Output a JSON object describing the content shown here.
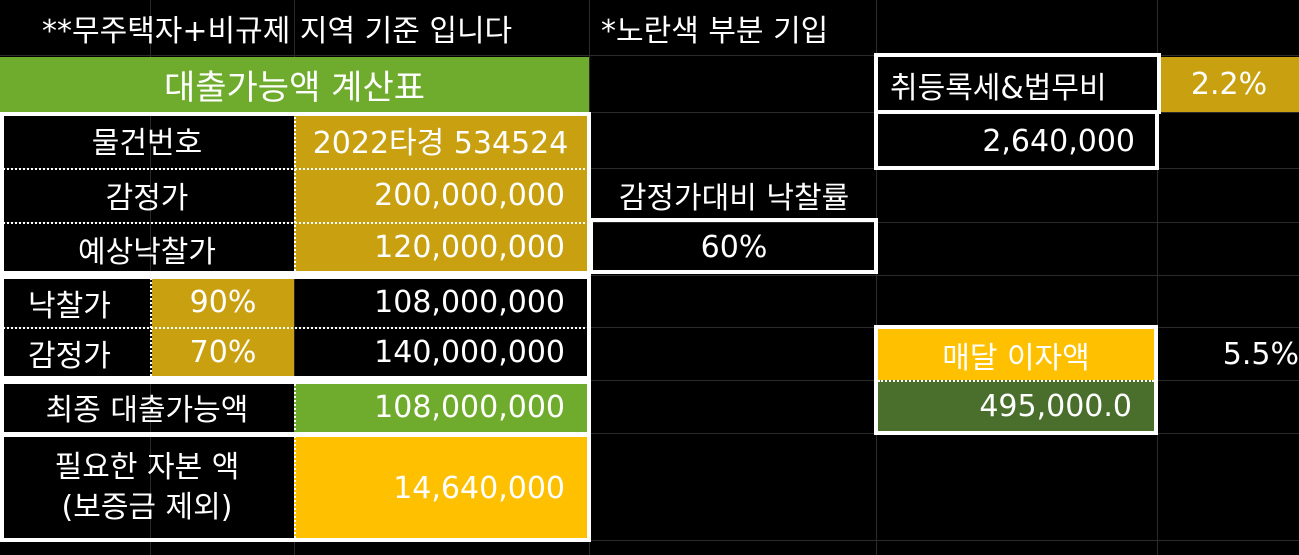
{
  "note_left": "**무주택자+비규제 지역 기준 입니다",
  "note_right": "*노란색 부분 기입",
  "title": "대출가능액 계산표",
  "rows": {
    "property_no": {
      "label": "물건번호",
      "value": "2022타경 534524"
    },
    "appraisal": {
      "label": "감정가",
      "value": "200,000,000"
    },
    "expected_bid": {
      "label": "예상낙찰가",
      "value": "120,000,000"
    },
    "bid_price_ltv": {
      "label": "낙찰가",
      "percent": "90%",
      "value": "108,000,000"
    },
    "appraisal_ltv": {
      "label": "감정가",
      "percent": "70%",
      "value": "140,000,000"
    },
    "final_loan": {
      "label": "최종 대출가능액",
      "value": "108,000,000"
    },
    "required_capital": {
      "label_line1": "필요한 자본 액",
      "label_line2": "(보증금 제외)",
      "value": "14,640,000"
    }
  },
  "bid_ratio": {
    "label": "감정가대비 낙찰률",
    "value": "60%"
  },
  "acquisition_tax": {
    "label": "취등록세&법무비",
    "rate": "2.2%",
    "value": "2,640,000"
  },
  "monthly_interest": {
    "label": "매달 이자액",
    "rate": "5.5%",
    "value": "495,000.0"
  },
  "colors": {
    "gold": "#C9A010",
    "yellow": "#FFC000",
    "green": "#6FAC2E",
    "dark_green": "#4A6E2C"
  }
}
